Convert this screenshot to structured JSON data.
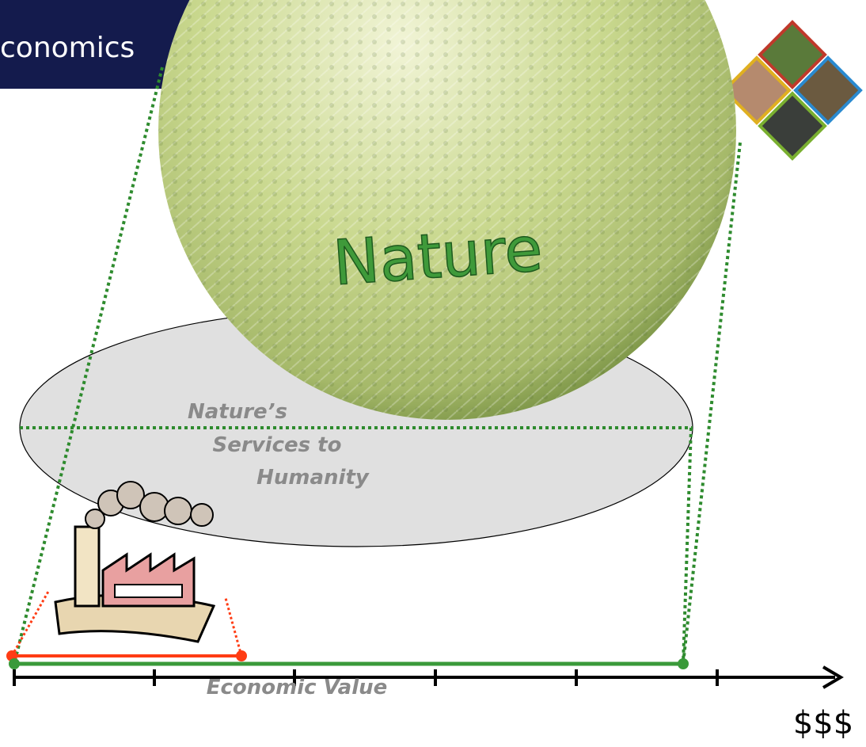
{
  "header": {
    "title": "conomics"
  },
  "sphere": {
    "label": "Nature"
  },
  "ellipse": {
    "lines": [
      "Nature’s",
      "Services to",
      "Humanity"
    ]
  },
  "axis": {
    "label": "Economic Value",
    "unit": "$$$"
  }
}
